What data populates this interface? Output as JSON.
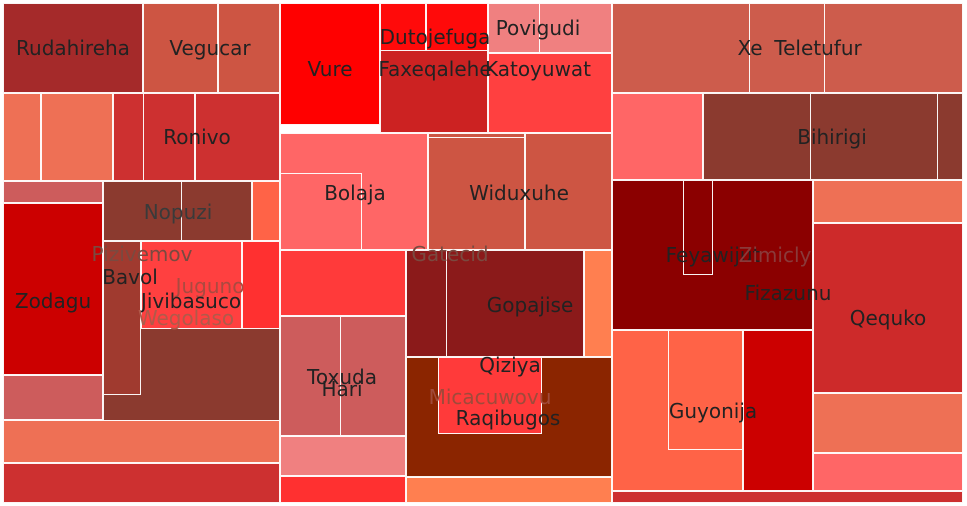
{
  "chart_data": {
    "type": "treemap",
    "title": "",
    "legend": "none",
    "groups": [
      {
        "items": [
          {
            "label": "Rudahireha",
            "color": "#a52a2a",
            "label_color": "#222222"
          },
          {
            "label": "Vegucar",
            "color": "#cd5543",
            "label_color": "#222222"
          },
          {
            "label": "Ronivo",
            "color": "#cd3030",
            "label_color": "#222222"
          },
          {
            "label": "Nopuzi",
            "color": "#8b3a2f",
            "label_color": "#3a3a3a"
          },
          {
            "label": "Pizivemov",
            "color": "#8b3a2f",
            "label_color": "#7a4a40"
          },
          {
            "label": "Bavol",
            "color": "#a03a2f",
            "label_color": "#222222"
          },
          {
            "label": "Juguno",
            "color": "#ff4040",
            "label_color": "#aa4a40"
          },
          {
            "label": "Jivibasuco",
            "color": "#ff3a3a",
            "label_color": "#222222"
          },
          {
            "label": "Zodagu",
            "color": "#cc0000",
            "label_color": "#222222"
          },
          {
            "label": "Wegolaso",
            "color": "#8b3a2f",
            "label_color": "#b05a4a"
          }
        ]
      },
      {
        "items": [
          {
            "label": "Vure",
            "color": "#ff0000",
            "label_color": "#222222"
          },
          {
            "label": "Dutojefuga",
            "color": "#ff0a0a",
            "label_color": "#222222"
          },
          {
            "label": "Faxeqalehe",
            "color": "#cc2222",
            "label_color": "#222222"
          },
          {
            "label": "Povigudi",
            "color": "#f08080",
            "label_color": "#222222"
          },
          {
            "label": "Katoyuwat",
            "color": "#ff4040",
            "label_color": "#222222"
          },
          {
            "label": "Bolaja",
            "color": "#ff6666",
            "label_color": "#222222"
          },
          {
            "label": "Widuxuhe",
            "color": "#cd5543",
            "label_color": "#222222"
          },
          {
            "label": "Gatecid",
            "color": "#8b1a1a",
            "label_color": "#7a4a40"
          },
          {
            "label": "Gopajise",
            "color": "#8b1a1a",
            "label_color": "#222222"
          },
          {
            "label": "Toxuda",
            "color": "#cd5c5c",
            "label_color": "#222222"
          },
          {
            "label": "Hari",
            "color": "#cd5c5c",
            "label_color": "#222222"
          },
          {
            "label": "Qiziya",
            "color": "#ff3a3a",
            "label_color": "#222222"
          },
          {
            "label": "Micacuwovu",
            "color": "#8b2500",
            "label_color": "#a04a3a"
          },
          {
            "label": "Raqibugos",
            "color": "#ff3a3a",
            "label_color": "#222222"
          }
        ]
      },
      {
        "items": [
          {
            "label": "Xe",
            "color": "#cd5c4c",
            "label_color": "#222222"
          },
          {
            "label": "Teletufur",
            "color": "#cd5c4c",
            "label_color": "#222222"
          },
          {
            "label": "Bihirigi",
            "color": "#8b3a2f",
            "label_color": "#222222"
          },
          {
            "label": "Feyawijut",
            "color": "#8b0000",
            "label_color": "#222222"
          },
          {
            "label": "Zimicly",
            "color": "#8b0000",
            "label_color": "#8a3a3a"
          },
          {
            "label": "Fizazunu",
            "color": "#8b0000",
            "label_color": "#222222"
          },
          {
            "label": "Qequko",
            "color": "#cd2a2a",
            "label_color": "#222222"
          },
          {
            "label": "Guyonija",
            "color": "#ff6347",
            "label_color": "#222222"
          }
        ]
      }
    ]
  }
}
